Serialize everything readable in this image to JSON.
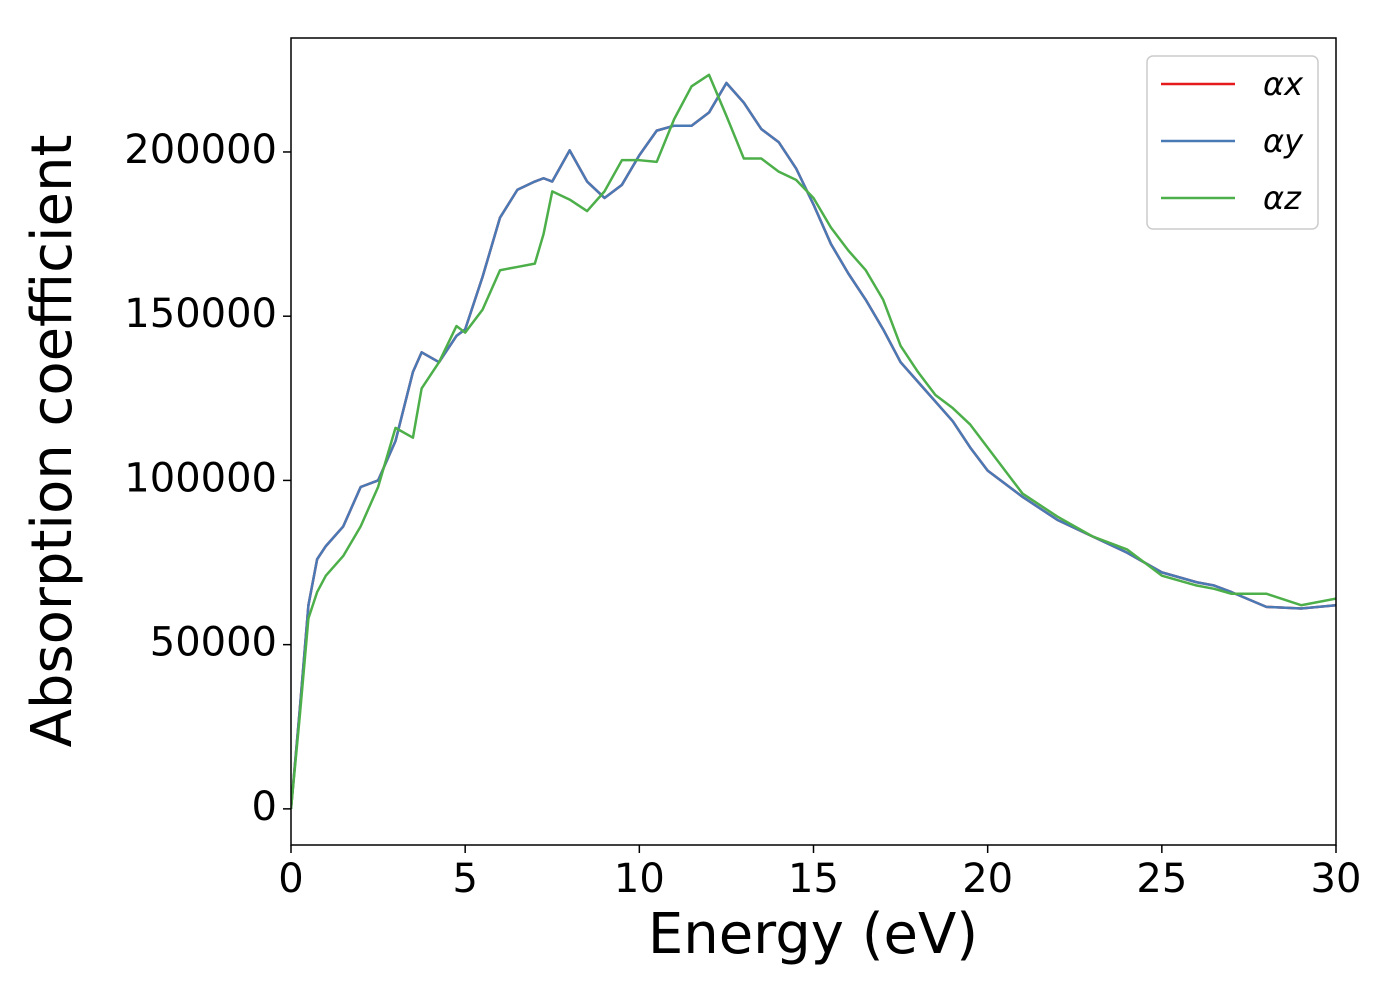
{
  "chart_data": {
    "type": "line",
    "xlabel": "Energy (eV)",
    "ylabel": "Absorption coefficient",
    "x": [
      0,
      0.25,
      0.5,
      0.75,
      1,
      1.5,
      2,
      2.5,
      3,
      3.5,
      3.75,
      4.25,
      4.75,
      5,
      5.5,
      6,
      6.5,
      7,
      7.25,
      7.5,
      8,
      8.5,
      9,
      9.5,
      10,
      10.5,
      11,
      11.5,
      12,
      12.5,
      13,
      13.5,
      14,
      14.5,
      15,
      15.5,
      16,
      16.5,
      17,
      17.5,
      18,
      18.5,
      19,
      19.5,
      20,
      21,
      22,
      23,
      24,
      25,
      26,
      26.5,
      27,
      28,
      29,
      30
    ],
    "series": [
      {
        "name": "αx",
        "color": "#e41a1c",
        "values": [
          0,
          30000,
          62000,
          76000,
          80000,
          86000,
          98000,
          100000,
          112000,
          133000,
          139000,
          136000,
          144000,
          146000,
          162000,
          180000,
          188500,
          191000,
          192000,
          191000,
          200500,
          191000,
          186000,
          190000,
          199000,
          206500,
          208000,
          208000,
          212000,
          221000,
          215000,
          207000,
          203000,
          195000,
          184000,
          172000,
          163000,
          155000,
          146000,
          136000,
          130000,
          124000,
          118000,
          110000,
          103000,
          95000,
          88000,
          83000,
          78000,
          72000,
          69000,
          68000,
          66000,
          61500,
          61000,
          62000
        ]
      },
      {
        "name": "αy",
        "color": "#4a7ab5",
        "values": [
          0,
          30000,
          62000,
          76000,
          80000,
          86000,
          98000,
          100000,
          112000,
          133000,
          139000,
          136000,
          144000,
          146000,
          162000,
          180000,
          188500,
          191000,
          192000,
          191000,
          200500,
          191000,
          186000,
          190000,
          199000,
          206500,
          208000,
          208000,
          212000,
          221000,
          215000,
          207000,
          203000,
          195000,
          184000,
          172000,
          163000,
          155000,
          146000,
          136000,
          130000,
          124000,
          118000,
          110000,
          103000,
          95000,
          88000,
          83000,
          78000,
          72000,
          69000,
          68000,
          66000,
          61500,
          61000,
          62000
        ]
      },
      {
        "name": "αz",
        "color": "#4daf4a",
        "values": [
          0,
          28000,
          58000,
          66000,
          71000,
          77000,
          86000,
          98000,
          116000,
          113000,
          128000,
          136000,
          147000,
          145000,
          152000,
          164000,
          165000,
          166000,
          175000,
          188000,
          185500,
          182000,
          188000,
          197500,
          197500,
          197000,
          210000,
          220000,
          223500,
          211000,
          198000,
          198000,
          194000,
          191500,
          186000,
          177000,
          170000,
          164000,
          155000,
          141000,
          133000,
          126000,
          122000,
          117000,
          110000,
          96000,
          89000,
          83000,
          79000,
          71000,
          68000,
          67000,
          65500,
          65500,
          62000,
          64000
        ]
      }
    ],
    "xlim": [
      0,
      30
    ],
    "xticks": [
      0,
      5,
      10,
      15,
      20,
      25,
      30
    ],
    "ylim": [
      -11000,
      234700
    ],
    "yticks": [
      0,
      50000,
      100000,
      150000,
      200000
    ],
    "legend": "upper right"
  }
}
